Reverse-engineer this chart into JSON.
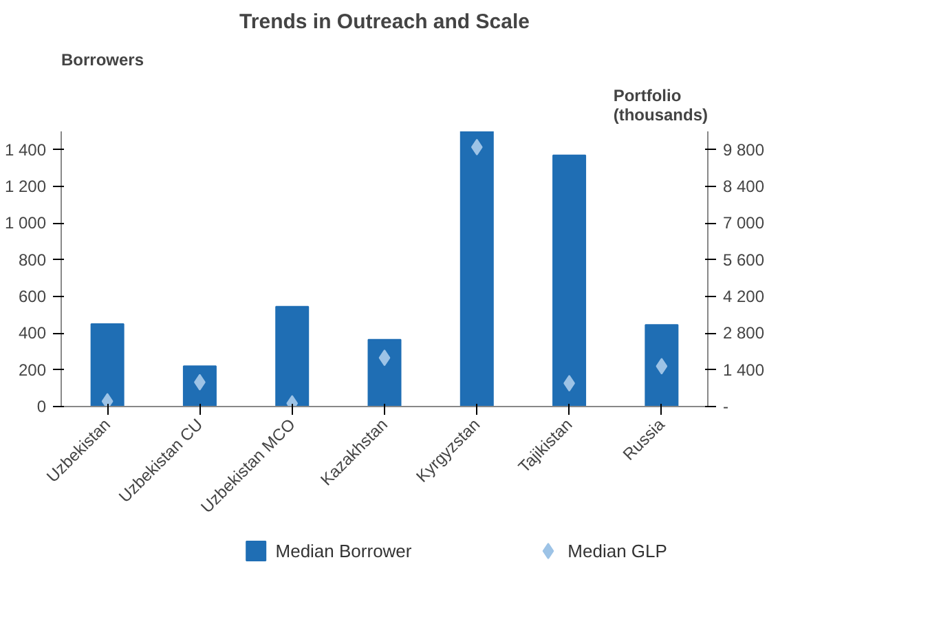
{
  "chart_data": {
    "type": "bar",
    "title": "Trends in Outreach and Scale",
    "ylabel": "Borrowers",
    "y2label": "Portfolio\n(thousands)",
    "categories": [
      "Uzbekistan",
      "Uzbekistan CU",
      "Uzbekistan MCO",
      "Kazakhstan",
      "Kyrgyzstan",
      "Tajikistan",
      "Russia"
    ],
    "series": [
      {
        "name": "Median Borrower",
        "color": "#1f6eb4",
        "values": [
          450,
          220,
          545,
          365,
          1500,
          1370,
          445
        ]
      },
      {
        "name": "Median GLP",
        "type": "scatter",
        "axis": "y2",
        "marker": "diamond",
        "color": "#9dc3e6",
        "values": [
          200,
          930,
          120,
          1860,
          9900,
          890,
          1540
        ]
      }
    ],
    "ylim": [
      0,
      1500
    ],
    "yticks": [
      0,
      {
        "value": 200,
        "label": "200"
      },
      {
        "value": 400,
        "label": "400"
      },
      {
        "value": 600,
        "label": "600"
      },
      {
        "value": 800,
        "label": "800"
      },
      {
        "value": 1000,
        "label": "1 000"
      },
      {
        "value": 1200,
        "label": "1 200"
      },
      {
        "value": 1400,
        "label": "1 400"
      }
    ],
    "y2lim": [
      0,
      10500
    ],
    "y2ticks": [
      {
        "value": 0,
        "label": "-"
      },
      {
        "value": 1400,
        "label": "1 400"
      },
      {
        "value": 2800,
        "label": "2 800"
      },
      {
        "value": 4200,
        "label": "4 200"
      },
      {
        "value": 5600,
        "label": "5 600"
      },
      {
        "value": 7000,
        "label": "7 000"
      },
      {
        "value": 8400,
        "label": "8 400"
      },
      {
        "value": 9800,
        "label": "9 800"
      }
    ],
    "grid": false,
    "legend": "bottom"
  }
}
